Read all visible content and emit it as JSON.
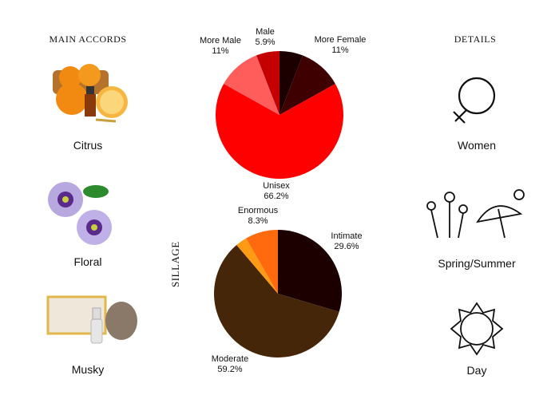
{
  "accords": {
    "title": "MAIN ACCORDS",
    "items": [
      {
        "label": "Citrus"
      },
      {
        "label": "Floral"
      },
      {
        "label": "Musky"
      }
    ]
  },
  "details": {
    "title": "DETAILS",
    "items": [
      {
        "label": "Women",
        "icon": "female-symbol-icon"
      },
      {
        "label": "Spring/Summer",
        "icon": "flowers-umbrella-sun-icon"
      },
      {
        "label": "Day",
        "icon": "sun-icon"
      }
    ]
  },
  "chart_data": [
    {
      "type": "pie",
      "title": "",
      "slices": [
        {
          "label": "",
          "value": 5.9,
          "color": "#1c0000"
        },
        {
          "label": "More Female",
          "value": 11,
          "display": "11%",
          "color": "#3e0000"
        },
        {
          "label": "Unisex",
          "value": 66.2,
          "display": "66.2%",
          "color": "#ff0000"
        },
        {
          "label": "More Male",
          "value": 11,
          "display": "11%",
          "color": "#ff5c5c"
        },
        {
          "label": "Male",
          "value": 5.9,
          "display": "5.9%",
          "color": "#c40000"
        }
      ]
    },
    {
      "type": "pie",
      "title": "SILLAGE",
      "slices": [
        {
          "label": "Intimate",
          "value": 29.6,
          "display": "29.6%",
          "color": "#1c0000"
        },
        {
          "label": "Moderate",
          "value": 59.2,
          "display": "59.2%",
          "color": "#452608"
        },
        {
          "label": "",
          "value": 2.9,
          "color": "#ff9a14"
        },
        {
          "label": "Enormous",
          "value": 8.3,
          "display": "8.3%",
          "color": "#ff6a0e"
        }
      ]
    }
  ]
}
